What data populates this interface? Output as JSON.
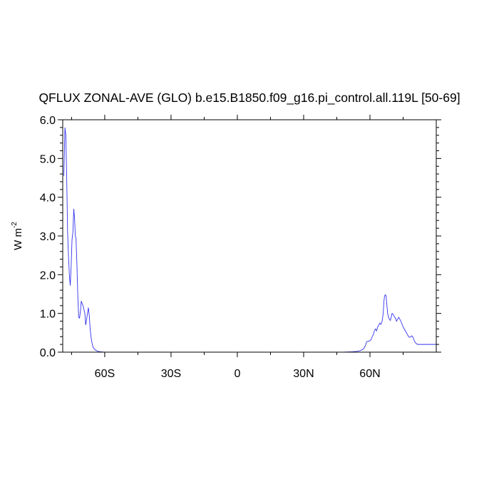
{
  "chart_data": {
    "type": "line",
    "title": "QFLUX ZONAL-AVE (GLO) b.e15.B1850.f09_g16.pi_control.all.119L [50-69]",
    "ylabel": "W m",
    "ylabel_exponent": "-2",
    "xlabel": "",
    "xlim": [
      -79,
      90
    ],
    "ylim": [
      0,
      6
    ],
    "grid": false,
    "line_color": "#3333ee",
    "x_ticks": [
      {
        "value": -60,
        "label": "60S"
      },
      {
        "value": -30,
        "label": "30S"
      },
      {
        "value": 0,
        "label": "0"
      },
      {
        "value": 30,
        "label": "30N"
      },
      {
        "value": 60,
        "label": "60N"
      }
    ],
    "y_ticks": [
      {
        "value": 0,
        "label": "0.0"
      },
      {
        "value": 1,
        "label": "1.0"
      },
      {
        "value": 2,
        "label": "2.0"
      },
      {
        "value": 3,
        "label": "3.0"
      },
      {
        "value": 4,
        "label": "4.0"
      },
      {
        "value": 5,
        "label": "5.0"
      },
      {
        "value": 6,
        "label": "6.0"
      }
    ],
    "series": [
      {
        "x": [
          -78.5,
          -78.0,
          -77.6,
          -77.2,
          -76.8,
          -76.4,
          -76.0,
          -75.6,
          -75.2,
          -74.8,
          -74.4,
          -74.0,
          -73.6,
          -73.3,
          -73.0,
          -72.6,
          -72.2,
          -71.8,
          -71.4,
          -71.0,
          -70.6,
          -70.2,
          -69.8,
          -69.4,
          -69.0,
          -68.6,
          -68.2,
          -67.8,
          -67.4,
          -67.0,
          -66.6,
          -66.2,
          -65.8,
          -65.4,
          -65.0,
          -64.6,
          -64.2,
          -63.8,
          -63.4,
          -63.0,
          -62.5,
          -62.0,
          -61.0,
          -60.0,
          -59.0,
          -58.0,
          -57.0,
          -55.0,
          -50.0,
          -40.0,
          -30.0,
          -20.0,
          -10.0,
          0.0,
          10.0,
          20.0,
          30.0,
          40.0,
          45.0,
          48.0,
          50.0,
          52.0,
          54.0,
          55.0,
          56.0,
          57.0,
          57.5,
          58.0,
          58.5,
          59.0,
          59.5,
          60.0,
          60.5,
          61.0,
          61.5,
          62.0,
          62.5,
          63.0,
          63.5,
          64.0,
          64.5,
          65.0,
          65.5,
          66.0,
          66.3,
          66.6,
          67.0,
          67.3,
          67.6,
          68.0,
          68.4,
          68.8,
          69.2,
          69.6,
          70.0,
          70.5,
          71.0,
          71.5,
          72.0,
          72.5,
          73.0,
          73.5,
          74.0,
          74.5,
          75.0,
          75.5,
          76.0,
          76.5,
          77.0,
          77.5,
          78.0,
          78.5,
          79.0,
          79.5,
          80.0,
          80.5,
          81.0,
          81.5,
          82.0,
          82.5,
          83.0,
          83.5,
          84.0,
          84.5,
          85.0,
          85.5,
          86.0,
          87.0,
          88.0,
          89.0,
          90.0
        ],
        "y": [
          4.55,
          5.8,
          5.6,
          4.5,
          3.1,
          2.5,
          2.0,
          1.72,
          2.2,
          2.9,
          3.1,
          3.7,
          3.4,
          3.0,
          2.95,
          2.3,
          1.5,
          0.9,
          0.88,
          1.05,
          1.32,
          1.25,
          1.2,
          1.1,
          1.0,
          0.7,
          0.85,
          1.0,
          1.15,
          0.95,
          0.6,
          0.4,
          0.25,
          0.15,
          0.1,
          0.08,
          0.06,
          0.04,
          0.03,
          0.02,
          0.015,
          0.01,
          0.005,
          0.002,
          0.001,
          0.0,
          0.0,
          0.0,
          0.0,
          0.0,
          0.0,
          0.0,
          0.0,
          0.0,
          0.0,
          0.0,
          0.0,
          0.0,
          0.0,
          0.0,
          0.005,
          0.01,
          0.02,
          0.03,
          0.05,
          0.08,
          0.12,
          0.18,
          0.27,
          0.28,
          0.28,
          0.3,
          0.32,
          0.4,
          0.45,
          0.55,
          0.6,
          0.55,
          0.65,
          0.7,
          0.75,
          0.72,
          0.8,
          1.0,
          1.3,
          1.45,
          1.48,
          1.45,
          1.25,
          1.0,
          0.9,
          0.85,
          0.82,
          0.9,
          1.0,
          0.98,
          0.92,
          0.88,
          0.8,
          0.85,
          0.9,
          0.85,
          0.8,
          0.72,
          0.65,
          0.6,
          0.55,
          0.5,
          0.45,
          0.4,
          0.38,
          0.4,
          0.42,
          0.38,
          0.3,
          0.25,
          0.22,
          0.2,
          0.2,
          0.2,
          0.2,
          0.2,
          0.2,
          0.2,
          0.2,
          0.2,
          0.2,
          0.2,
          0.2,
          0.2,
          0.2
        ]
      }
    ]
  }
}
